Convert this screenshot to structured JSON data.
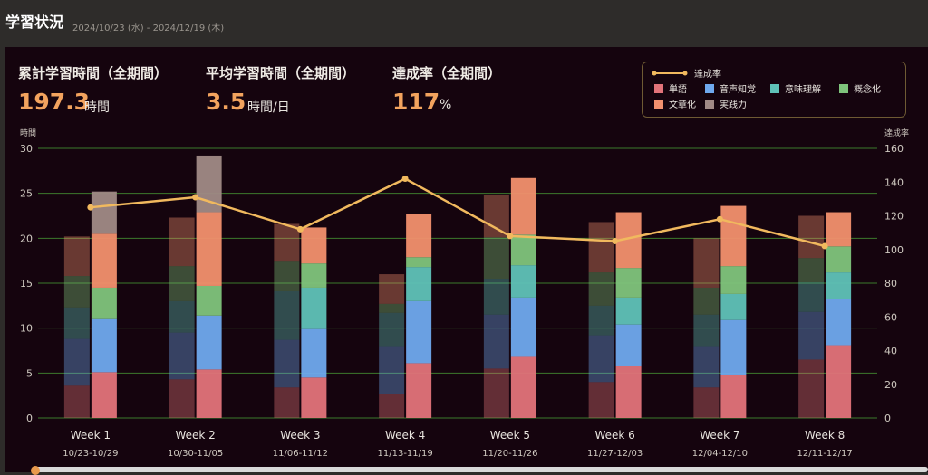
{
  "header": {
    "title": "学習状況",
    "date_range": "2024/10/23 (水) - 2024/12/19 (木)"
  },
  "stats": {
    "total": {
      "label": "累計学習時間（全期間）",
      "value": "197.3",
      "unit": "時間"
    },
    "average": {
      "label": "平均学習時間（全期間）",
      "value": "3.5",
      "unit": "時間/日"
    },
    "achievement": {
      "label": "達成率（全期間）",
      "value": "117",
      "unit": "%"
    }
  },
  "colors": {
    "accent": "#f2a35e",
    "line": "#f1b95e",
    "grid": "#3c7a2c",
    "categories": [
      "#e2737a",
      "#6fa9ee",
      "#5fc2b8",
      "#7fc47c",
      "#f2906e",
      "#a08a86"
    ]
  },
  "chart_data": {
    "type": "bar",
    "categories": [
      "Week 1",
      "Week 2",
      "Week 3",
      "Week 4",
      "Week 5",
      "Week 6",
      "Week 7",
      "Week 8"
    ],
    "sublabels": [
      "10/23-10/29",
      "10/30-11/05",
      "11/06-11/12",
      "11/13-11/19",
      "11/20-11/26",
      "11/27-12/03",
      "12/04-12/10",
      "12/11-12/17"
    ],
    "y_left": {
      "label": "時間",
      "min": 0,
      "max": 30,
      "ticks": [
        0,
        5,
        10,
        15,
        20,
        25,
        30
      ]
    },
    "y_right": {
      "label": "達成率",
      "min": 0,
      "max": 160,
      "ticks": [
        0,
        20,
        40,
        60,
        80,
        100,
        120,
        140,
        160
      ]
    },
    "stack_names": [
      "単語",
      "音声知覚",
      "意味理解",
      "概念化",
      "文章化",
      "実践力"
    ],
    "target_series": [
      {
        "name": "単語",
        "values": [
          3.6,
          4.3,
          3.4,
          2.7,
          5.5,
          4.0,
          3.4,
          6.5
        ]
      },
      {
        "name": "音声知覚",
        "values": [
          5.2,
          5.2,
          5.3,
          5.3,
          6.0,
          5.2,
          4.6,
          5.3
        ]
      },
      {
        "name": "意味理解",
        "values": [
          3.5,
          3.5,
          5.4,
          3.7,
          4.0,
          3.3,
          3.5,
          3.3
        ]
      },
      {
        "name": "概念化",
        "values": [
          3.5,
          3.9,
          3.3,
          1.0,
          4.6,
          3.7,
          3.0,
          2.7
        ]
      },
      {
        "name": "文章化",
        "values": [
          4.4,
          5.4,
          4.2,
          3.3,
          4.7,
          5.6,
          5.5,
          4.7
        ]
      },
      {
        "name": "実践力",
        "values": [
          0,
          0,
          0,
          0,
          0,
          0,
          0,
          0
        ]
      }
    ],
    "actual_series": [
      {
        "name": "単語",
        "values": [
          5.1,
          5.4,
          4.5,
          6.1,
          6.8,
          5.8,
          4.8,
          8.1
        ]
      },
      {
        "name": "音声知覚",
        "values": [
          5.9,
          6.0,
          5.4,
          6.9,
          6.6,
          4.6,
          6.1,
          5.1
        ]
      },
      {
        "name": "意味理解",
        "values": [
          0,
          0,
          4.6,
          3.8,
          3.6,
          3.0,
          2.9,
          3.0
        ]
      },
      {
        "name": "概念化",
        "values": [
          3.5,
          3.3,
          2.7,
          1.1,
          3.4,
          3.3,
          3.1,
          2.9
        ]
      },
      {
        "name": "文章化",
        "values": [
          6.0,
          8.2,
          4.0,
          4.8,
          6.3,
          6.2,
          6.7,
          3.8
        ]
      },
      {
        "name": "実践力",
        "values": [
          4.7,
          6.3,
          0,
          0,
          0,
          0,
          0,
          0
        ]
      }
    ],
    "line_series": {
      "name": "達成率",
      "values": [
        125,
        131,
        112,
        142,
        108,
        105,
        118,
        102
      ]
    },
    "legend": [
      "達成率",
      "単語",
      "音声知覚",
      "意味理解",
      "概念化",
      "文章化",
      "実践力"
    ],
    "legend_position": "top-right",
    "grid": true
  }
}
